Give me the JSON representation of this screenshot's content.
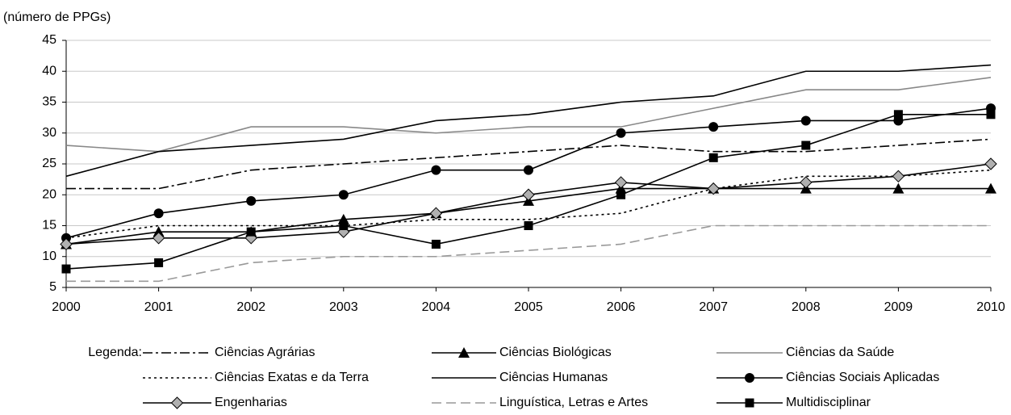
{
  "chart_data": {
    "type": "line",
    "y_label": "(número de PPGs)",
    "x": [
      2000,
      2001,
      2002,
      2003,
      2004,
      2005,
      2006,
      2007,
      2008,
      2009,
      2010
    ],
    "xlim": [
      2000,
      2010
    ],
    "xticks": [
      2000,
      2001,
      2002,
      2003,
      2004,
      2005,
      2006,
      2007,
      2008,
      2009,
      2010
    ],
    "ylim": [
      5,
      45
    ],
    "yticks": [
      5,
      10,
      15,
      20,
      25,
      30,
      35,
      40,
      45
    ],
    "grid": true,
    "legend_title": "Legenda:",
    "legend_position": "bottom",
    "series": [
      {
        "name": "Ciências Agrárias",
        "color": "#000000",
        "line_style": "dash-dot",
        "marker": null,
        "values": [
          21,
          21,
          24,
          25,
          26,
          27,
          28,
          27,
          27,
          28,
          29
        ]
      },
      {
        "name": "Ciências Biológicas",
        "color": "#000000",
        "line_style": "solid",
        "marker": "triangle",
        "values": [
          12,
          14,
          14,
          16,
          17,
          19,
          21,
          21,
          21,
          21,
          21
        ]
      },
      {
        "name": "Ciências da Saúde",
        "color": "#888888",
        "line_style": "solid",
        "marker": null,
        "values": [
          28,
          27,
          31,
          31,
          30,
          31,
          31,
          34,
          37,
          37,
          39
        ]
      },
      {
        "name": "Ciências Exatas e da Terra",
        "color": "#000000",
        "line_style": "dotted",
        "marker": null,
        "values": [
          13,
          15,
          15,
          15,
          16,
          16,
          17,
          21,
          23,
          23,
          24
        ]
      },
      {
        "name": "Ciências Humanas",
        "color": "#000000",
        "line_style": "solid",
        "marker": null,
        "values": [
          23,
          27,
          28,
          29,
          32,
          33,
          35,
          36,
          40,
          40,
          41
        ]
      },
      {
        "name": "Ciências Sociais Aplicadas",
        "color": "#000000",
        "line_style": "solid",
        "marker": "circle",
        "values": [
          13,
          17,
          19,
          20,
          24,
          24,
          30,
          31,
          32,
          32,
          34
        ]
      },
      {
        "name": "Engenharias",
        "color": "#000000",
        "line_style": "solid",
        "marker": "diamond",
        "values": [
          12,
          13,
          13,
          14,
          17,
          20,
          22,
          21,
          22,
          23,
          25
        ]
      },
      {
        "name": "Linguística, Letras e Artes",
        "color": "#999999",
        "line_style": "dashed",
        "marker": null,
        "values": [
          6,
          6,
          9,
          10,
          10,
          11,
          12,
          15,
          15,
          15,
          15
        ]
      },
      {
        "name": "Multidisciplinar",
        "color": "#000000",
        "line_style": "solid",
        "marker": "square",
        "values": [
          8,
          9,
          14,
          15,
          12,
          15,
          20,
          26,
          28,
          33,
          33
        ]
      }
    ]
  }
}
